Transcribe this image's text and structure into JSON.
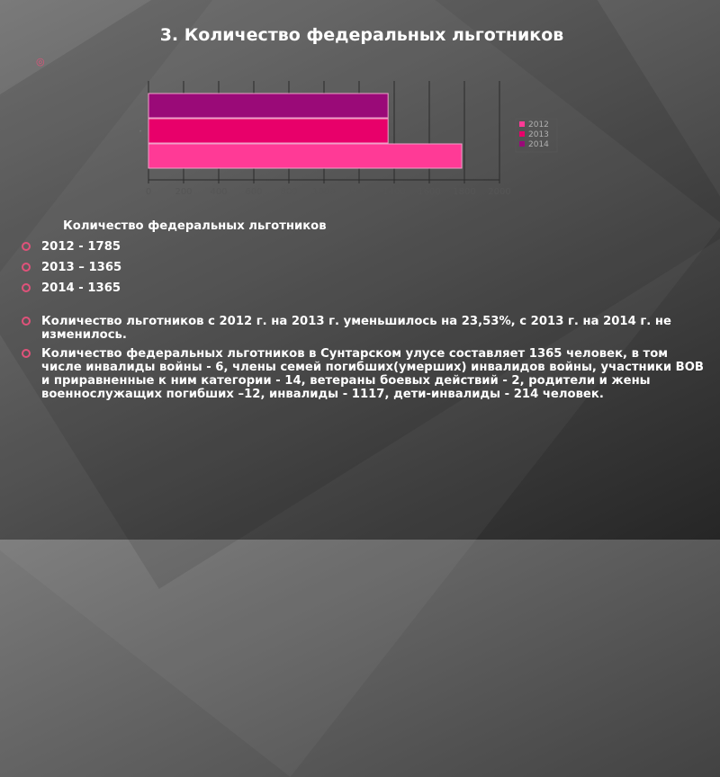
{
  "slide": {
    "title": "3. Количество федеральных  льготников",
    "summary_title": "Количество федеральных  льготников",
    "summary_items": [
      "2012 - 1785",
      "2013 – 1365",
      "2014 - 1365"
    ],
    "paragraphs": [
      "Количество льготников с 2012 г. на 2013 г. уменьшилось на 23,53%, с 2013 г. на 2014 г.  не изменилось.",
      "Количество федеральных льготников в Сунтарском улусе составляет 1365 человек, в том числе инвалиды войны - 6, члены семей погибших(умерших) инвалидов войны, участники ВОВ и приравненные к ним категории - 14, ветераны боевых действий - 2, родители и жены военнослужащих погибших –12, инвалиды - 1117, дети-инвалиды - 214 человек."
    ],
    "colors": {
      "accent_bullet": "#e0527a"
    }
  },
  "chart_data": {
    "type": "bar",
    "orientation": "horizontal",
    "title": "",
    "xlabel": "",
    "ylabel": "",
    "categories": [
      "1"
    ],
    "series": [
      {
        "name": "2012",
        "values": [
          1785
        ],
        "color": "#ff3a96"
      },
      {
        "name": "2013",
        "values": [
          1365
        ],
        "color": "#e8006a"
      },
      {
        "name": "2014",
        "values": [
          1365
        ],
        "color": "#9a0a78"
      }
    ],
    "xlim": [
      0,
      2000
    ],
    "xticks": [
      0,
      200,
      400,
      600,
      800,
      1000,
      1200,
      1400,
      1600,
      1800,
      2000
    ],
    "grid": true,
    "legend": "right"
  }
}
